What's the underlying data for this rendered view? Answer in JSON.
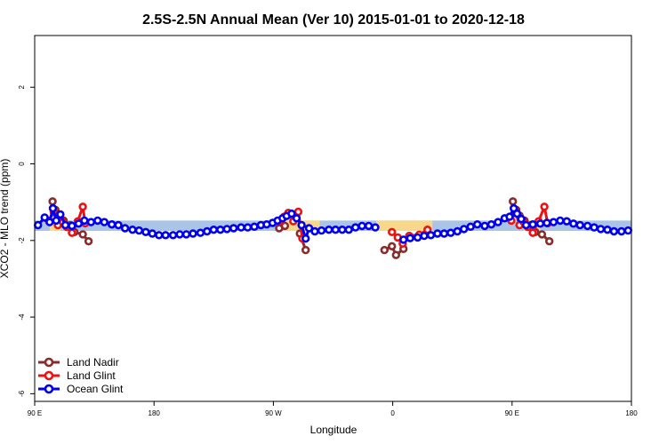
{
  "chart_data": {
    "type": "line",
    "title": "2.5S-2.5N Annual Mean (Ver 10)   2015-01-01 to 2020-12-18",
    "xlabel": "Longitude",
    "ylabel": "XCO2 - MLO trend (ppm)",
    "xlim": [
      90,
      450
    ],
    "ylim": [
      -6.2,
      3.35
    ],
    "x_tick_values": [
      90,
      162,
      234,
      306,
      378,
      450
    ],
    "x_tick_labels": [
      "90 E",
      "180",
      "90 W",
      "0",
      "90 E",
      "180"
    ],
    "y_tick_values": [
      2,
      0,
      -2,
      -4,
      -6
    ],
    "y_tick_labels": [
      "2",
      "0",
      "-2",
      "-4",
      "-6"
    ],
    "grid": false,
    "legend_position": "bottom-left",
    "bands": [
      {
        "color": "#a9c4e6",
        "from": 90,
        "to": 450,
        "y_low": -1.75,
        "y_high": -1.48
      },
      {
        "color": "#f7d88a",
        "from": 99,
        "to": 106,
        "y_low": -1.75,
        "y_high": -1.48
      },
      {
        "color": "#f7d88a",
        "from": 240,
        "to": 262,
        "y_low": -1.75,
        "y_high": -1.48
      },
      {
        "color": "#f7d88a",
        "from": 296,
        "to": 330,
        "y_low": -1.75,
        "y_high": -1.48
      },
      {
        "color": "#f7d88a",
        "from": 385,
        "to": 395,
        "y_low": -1.75,
        "y_high": -1.48
      }
    ],
    "series": [
      {
        "name": "Land Nadir",
        "color": "#8b2a2a",
        "segments": [
          [
            [
              100.8,
              -0.98
            ],
            [
              102.5,
              -1.2
            ],
            [
              104.5,
              -1.35
            ],
            [
              107.5,
              -1.48
            ],
            [
              111.5,
              -1.6
            ],
            [
              114,
              -1.78
            ],
            [
              119,
              -1.84
            ],
            [
              122.5,
              -2.02
            ]
          ],
          [
            [
              237.5,
              -1.68
            ],
            [
              241,
              -1.62
            ]
          ],
          [
            [
              250,
              -1.82
            ],
            [
              253.5,
              -2.25
            ]
          ],
          [
            [
              301,
              -2.25
            ],
            [
              305.5,
              -2.15
            ],
            [
              308,
              -2.38
            ],
            [
              312.5,
              -2.22
            ]
          ],
          [
            [
              378.5,
              -0.98
            ],
            [
              380.5,
              -1.2
            ],
            [
              382.5,
              -1.35
            ],
            [
              385.5,
              -1.48
            ],
            [
              389.5,
              -1.6
            ],
            [
              392,
              -1.78
            ],
            [
              396,
              -1.84
            ],
            [
              400.5,
              -2.02
            ]
          ]
        ]
      },
      {
        "name": "Land Glint",
        "color": "#ee1111",
        "segments": [
          [
            [
              98.5,
              -1.48
            ],
            [
              101.5,
              -1.25
            ],
            [
              104,
              -1.6
            ],
            [
              107,
              -1.52
            ],
            [
              109.5,
              -1.65
            ],
            [
              112.5,
              -1.8
            ],
            [
              116,
              -1.5
            ],
            [
              119,
              -1.12
            ],
            [
              120.5,
              -1.55
            ]
          ],
          [
            [
              238.5,
              -1.48
            ],
            [
              240.5,
              -1.38
            ],
            [
              243,
              -1.28
            ],
            [
              246,
              -1.5
            ],
            [
              249,
              -1.25
            ],
            [
              251.5,
              -1.95
            ]
          ],
          [
            [
              305.5,
              -1.78
            ],
            [
              309,
              -1.92
            ],
            [
              312,
              -2.08
            ],
            [
              316,
              -1.88
            ],
            [
              322,
              -1.85
            ],
            [
              327,
              -1.72
            ]
          ],
          [
            [
              377.5,
              -1.48
            ],
            [
              380,
              -1.25
            ],
            [
              382.5,
              -1.6
            ],
            [
              385,
              -1.52
            ],
            [
              387.5,
              -1.65
            ],
            [
              390.5,
              -1.8
            ],
            [
              394,
              -1.5
            ],
            [
              397.5,
              -1.12
            ],
            [
              399.5,
              -1.55
            ]
          ]
        ]
      },
      {
        "name": "Ocean Glint",
        "color": "#0000ee",
        "segments": [
          [
            [
              92,
              -1.6
            ],
            [
              96,
              -1.4
            ],
            [
              99,
              -1.52
            ],
            [
              101,
              -1.16
            ],
            [
              103,
              -1.48
            ],
            [
              105.5,
              -1.32
            ],
            [
              108.5,
              -1.6
            ],
            [
              112.5,
              -1.62
            ],
            [
              116.5,
              -1.56
            ],
            [
              120,
              -1.48
            ],
            [
              124,
              -1.52
            ],
            [
              128,
              -1.48
            ],
            [
              132,
              -1.52
            ],
            [
              136.5,
              -1.58
            ],
            [
              140.5,
              -1.6
            ],
            [
              144.5,
              -1.68
            ],
            [
              149,
              -1.72
            ],
            [
              153,
              -1.74
            ],
            [
              157,
              -1.78
            ],
            [
              161,
              -1.82
            ],
            [
              165,
              -1.86
            ],
            [
              169,
              -1.86
            ],
            [
              173.5,
              -1.86
            ],
            [
              177.5,
              -1.84
            ],
            [
              181.5,
              -1.84
            ],
            [
              185.5,
              -1.82
            ],
            [
              190,
              -1.8
            ],
            [
              194,
              -1.76
            ],
            [
              198,
              -1.72
            ],
            [
              202,
              -1.72
            ],
            [
              206,
              -1.7
            ],
            [
              210,
              -1.68
            ],
            [
              214.5,
              -1.66
            ],
            [
              218.5,
              -1.66
            ],
            [
              222.5,
              -1.64
            ],
            [
              226.5,
              -1.6
            ],
            [
              230,
              -1.58
            ],
            [
              233.5,
              -1.54
            ],
            [
              236.5,
              -1.48
            ],
            [
              239.5,
              -1.42
            ],
            [
              242,
              -1.36
            ],
            [
              245,
              -1.3
            ],
            [
              248,
              -1.42
            ],
            [
              251,
              -1.6
            ],
            [
              253.5,
              -1.95
            ],
            [
              255.5,
              -1.68
            ],
            [
              259,
              -1.76
            ],
            [
              263,
              -1.74
            ],
            [
              267.5,
              -1.72
            ],
            [
              271.5,
              -1.72
            ],
            [
              275.5,
              -1.72
            ],
            [
              279.5,
              -1.72
            ],
            [
              283.5,
              -1.66
            ],
            [
              287.5,
              -1.62
            ],
            [
              291.5,
              -1.62
            ],
            [
              295.5,
              -1.66
            ]
          ],
          [
            [
              312.5,
              -1.98
            ],
            [
              316.5,
              -1.94
            ],
            [
              321,
              -1.92
            ],
            [
              325,
              -1.88
            ],
            [
              329,
              -1.86
            ],
            [
              333,
              -1.82
            ],
            [
              337,
              -1.82
            ],
            [
              341,
              -1.8
            ],
            [
              345,
              -1.76
            ],
            [
              349,
              -1.7
            ],
            [
              353,
              -1.64
            ],
            [
              357,
              -1.58
            ],
            [
              361.5,
              -1.62
            ],
            [
              365.5,
              -1.58
            ],
            [
              369.5,
              -1.52
            ],
            [
              373.5,
              -1.42
            ],
            [
              376.5,
              -1.38
            ],
            [
              379,
              -1.16
            ],
            [
              381,
              -1.3
            ],
            [
              383.5,
              -1.44
            ],
            [
              386.5,
              -1.6
            ],
            [
              390.5,
              -1.58
            ],
            [
              395,
              -1.56
            ],
            [
              399,
              -1.54
            ],
            [
              403,
              -1.52
            ],
            [
              407,
              -1.48
            ],
            [
              411,
              -1.5
            ],
            [
              415,
              -1.56
            ],
            [
              419,
              -1.6
            ],
            [
              423.5,
              -1.62
            ],
            [
              427.5,
              -1.66
            ],
            [
              431.5,
              -1.7
            ],
            [
              435.5,
              -1.72
            ],
            [
              439.5,
              -1.76
            ],
            [
              444,
              -1.76
            ],
            [
              448,
              -1.74
            ]
          ]
        ]
      }
    ]
  }
}
